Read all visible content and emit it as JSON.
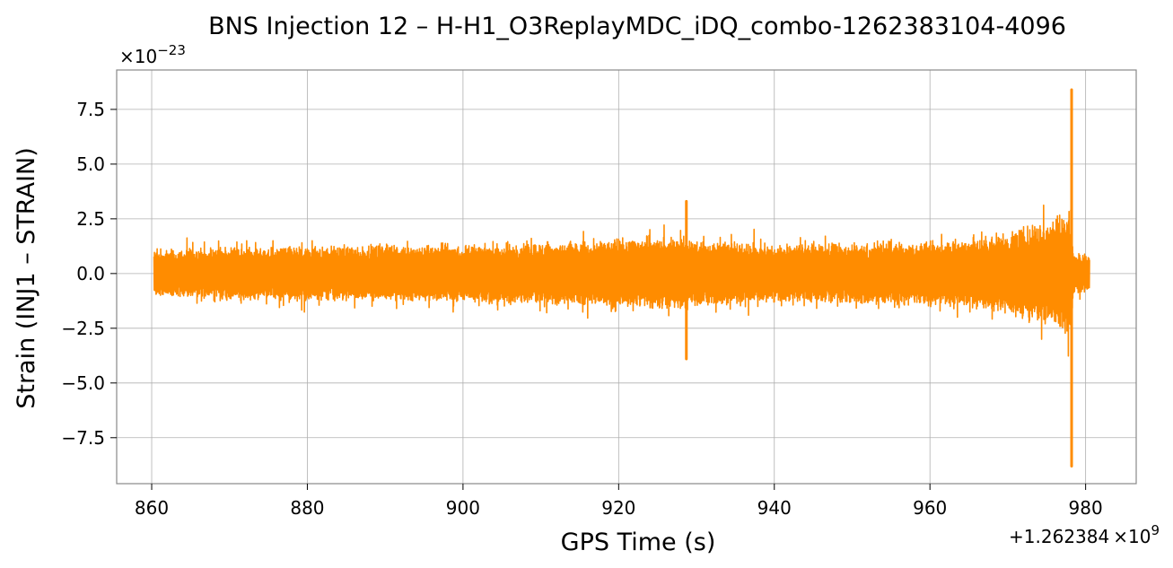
{
  "chart_data": {
    "type": "line",
    "title": "BNS Injection 12 – H-H1_O3ReplayMDC_iDQ_combo-1262383104-4096",
    "xlabel": "GPS Time (s)",
    "ylabel": "Strain (INJ1 – STRAIN)",
    "x_offset_label": "+1.262384",
    "x_offset_sup": "×10",
    "x_offset_exp": "9",
    "y_scale_label": "×10",
    "y_scale_exp": "−23",
    "xlim": [
      855.5,
      986.5
    ],
    "ylim": [
      -9.6,
      9.3
    ],
    "xticks": [
      860,
      880,
      900,
      920,
      940,
      960,
      980
    ],
    "xtick_labels": [
      "860",
      "880",
      "900",
      "920",
      "940",
      "960",
      "980"
    ],
    "yticks": [
      -7.5,
      -5.0,
      -2.5,
      0.0,
      2.5,
      5.0,
      7.5
    ],
    "ytick_labels": [
      "−7.5",
      "−5.0",
      "−2.5",
      "0.0",
      "2.5",
      "5.0",
      "7.5"
    ],
    "grid": true,
    "series": [
      {
        "color": "#ff8c00",
        "x_start": 860.3,
        "x_end": 980.5,
        "noise_envelope": [
          [
            860.3,
            1.1
          ],
          [
            870,
            1.25
          ],
          [
            880,
            1.3
          ],
          [
            890,
            1.35
          ],
          [
            900,
            1.4
          ],
          [
            910,
            1.5
          ],
          [
            920,
            1.65
          ],
          [
            925,
            1.8
          ],
          [
            940,
            1.4
          ],
          [
            950,
            1.45
          ],
          [
            960,
            1.55
          ],
          [
            965,
            1.7
          ],
          [
            970,
            2.0
          ],
          [
            975,
            2.6
          ],
          [
            978,
            3.2
          ],
          [
            978.5,
            1.0
          ],
          [
            980.5,
            0.9
          ]
        ],
        "spikes": [
          {
            "x": 928.7,
            "ymax": 3.3,
            "ymin": -3.9
          },
          {
            "x": 978.2,
            "ymax": 8.4,
            "ymin": -8.8
          }
        ]
      }
    ]
  }
}
